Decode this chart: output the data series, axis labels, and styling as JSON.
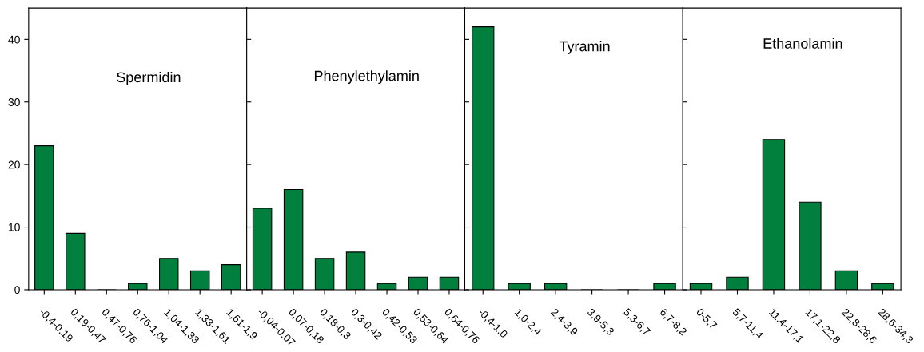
{
  "chart_data": [
    {
      "type": "bar",
      "title": "Spermidin",
      "categories": [
        "-0,4-0,19",
        "0,19-0,47",
        "0,47-0,76",
        "0,76-1,04",
        "1,04-1,33",
        "1,33-1,61",
        "1,61-1,9"
      ],
      "values": [
        23,
        9,
        0,
        1,
        5,
        3,
        4
      ],
      "color": "#007f3d",
      "ylim": [
        0,
        45
      ],
      "yticks": [
        0,
        10,
        20,
        30,
        40
      ],
      "grid": false
    },
    {
      "type": "bar",
      "title": "Phenylethylamin",
      "categories": [
        "-0,04-0,07",
        "0,07-0,18",
        "0,18-0,3",
        "0,3-0,42",
        "0,42-0,53",
        "0,53-0,64",
        "0,64-0,76"
      ],
      "values": [
        13,
        16,
        5,
        6,
        1,
        2,
        2
      ],
      "color": "#007f3d",
      "ylim": [
        0,
        45
      ],
      "yticks": [
        0,
        10,
        20,
        30,
        40
      ],
      "tick_labels": "x",
      "grid": false
    },
    {
      "type": "bar",
      "title": "Tyramin",
      "categories": [
        "-0,4-1,0",
        "1,0-2,4",
        "2,4-3,9",
        "3,9-5,3",
        "5,3-6,7",
        "6,7-8,2"
      ],
      "values": [
        42,
        1,
        1,
        0,
        0,
        1
      ],
      "color": "#007f3d",
      "ylim": [
        0,
        45
      ],
      "yticks": [
        0,
        10,
        20,
        30,
        40
      ],
      "tick_labels": "x",
      "grid": false
    },
    {
      "type": "bar",
      "title": "Ethanolamin",
      "categories": [
        "0-5,7",
        "5,7-11,4",
        "11,4-17,1",
        "17,1-22,8",
        "22,8-28,6",
        "28,6-34,3"
      ],
      "values": [
        1,
        2,
        24,
        14,
        3,
        1
      ],
      "color": "#007f3d",
      "ylim": [
        0,
        45
      ],
      "yticks": [
        0,
        10,
        20,
        30,
        40
      ],
      "tick_labels": "x",
      "grid": false
    }
  ]
}
